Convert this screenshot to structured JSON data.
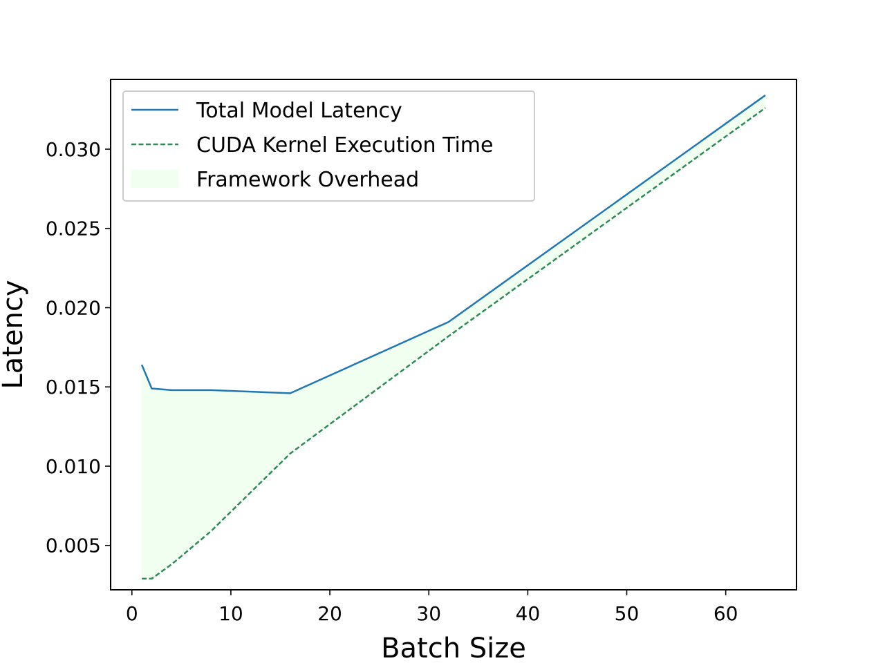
{
  "chart_data": {
    "type": "line",
    "title": "",
    "xlabel": "Batch Size",
    "ylabel": "Latency",
    "xlim": [
      -2.15,
      67.15
    ],
    "ylim": [
      0.0022,
      0.0344
    ],
    "x_ticks": [
      0,
      10,
      20,
      30,
      40,
      50,
      60
    ],
    "x_tick_labels": [
      "0",
      "10",
      "20",
      "30",
      "40",
      "50",
      "60"
    ],
    "y_ticks": [
      0.005,
      0.01,
      0.015,
      0.02,
      0.025,
      0.03
    ],
    "y_tick_labels": [
      "0.005",
      "0.010",
      "0.015",
      "0.020",
      "0.025",
      "0.030"
    ],
    "grid": false,
    "legend_position": "top-left",
    "x": [
      1,
      2,
      4,
      8,
      16,
      32,
      64
    ],
    "series": [
      {
        "name": "Total Model Latency",
        "values": [
          0.0164,
          0.0149,
          0.0148,
          0.0148,
          0.0146,
          0.0191,
          0.0334
        ],
        "color": "#1f77b4",
        "style": "solid"
      },
      {
        "name": "CUDA Kernel Execution Time",
        "values": [
          0.0029,
          0.0029,
          0.0038,
          0.0059,
          0.0108,
          0.0182,
          0.0326
        ],
        "color": "#2e8b57",
        "style": "dashed"
      }
    ],
    "fill_between": {
      "name": "Framework Overhead",
      "upper": "Total Model Latency",
      "lower": "CUDA Kernel Execution Time",
      "color": "#f0fff0"
    }
  }
}
